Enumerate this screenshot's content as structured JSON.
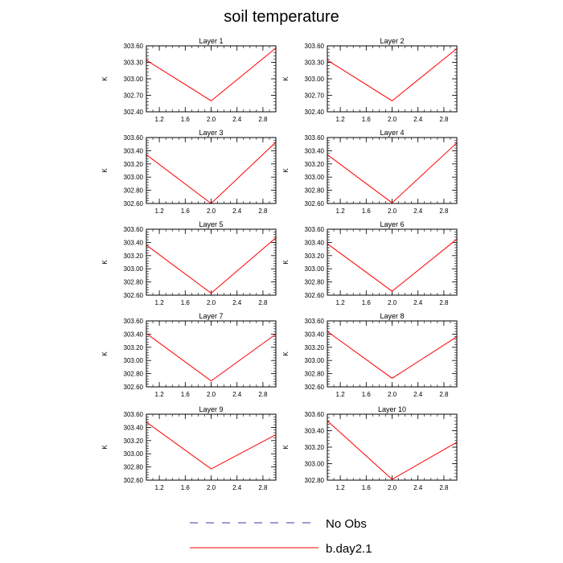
{
  "title": "soil temperature",
  "legend": [
    {
      "label": "No Obs",
      "color": "#3b3b9c",
      "dash": true
    },
    {
      "label": "b.day2.1",
      "color": "#ff0000",
      "dash": false
    }
  ],
  "chart_data": [
    {
      "type": "line",
      "title": "Layer 1",
      "ylabel": "K",
      "xlim": [
        1.0,
        3.0
      ],
      "ylim": [
        302.4,
        303.6
      ],
      "xticks": [
        1.2,
        1.6,
        2.0,
        2.4,
        2.8
      ],
      "xtick_labels": [
        "1.2",
        "1.6",
        "2.0",
        "2.4",
        "2.8"
      ],
      "yticks": [
        302.4,
        302.7,
        303.0,
        303.3,
        303.6
      ],
      "ytick_labels": [
        "302.40",
        "302.70",
        "303.00",
        "303.30",
        "303.60"
      ],
      "series": [
        {
          "name": "b.day2.1",
          "x": [
            1,
            2,
            3
          ],
          "values": [
            303.34,
            302.6,
            303.56
          ]
        }
      ]
    },
    {
      "type": "line",
      "title": "Layer 2",
      "ylabel": "K",
      "xlim": [
        1.0,
        3.0
      ],
      "ylim": [
        302.4,
        303.6
      ],
      "xticks": [
        1.2,
        1.6,
        2.0,
        2.4,
        2.8
      ],
      "xtick_labels": [
        "1.2",
        "1.6",
        "2.0",
        "2.4",
        "2.8"
      ],
      "yticks": [
        302.4,
        302.7,
        303.0,
        303.3,
        303.6
      ],
      "ytick_labels": [
        "302.40",
        "302.70",
        "303.00",
        "303.30",
        "303.60"
      ],
      "series": [
        {
          "name": "b.day2.1",
          "x": [
            1,
            2,
            3
          ],
          "values": [
            303.34,
            302.6,
            303.55
          ]
        }
      ]
    },
    {
      "type": "line",
      "title": "Layer 3",
      "ylabel": "K",
      "xlim": [
        1.0,
        3.0
      ],
      "ylim": [
        302.6,
        303.6
      ],
      "xticks": [
        1.2,
        1.6,
        2.0,
        2.4,
        2.8
      ],
      "xtick_labels": [
        "1.2",
        "1.6",
        "2.0",
        "2.4",
        "2.8"
      ],
      "yticks": [
        302.6,
        302.8,
        303.0,
        303.2,
        303.4,
        303.6
      ],
      "ytick_labels": [
        "302.60",
        "302.80",
        "303.00",
        "303.20",
        "303.40",
        "303.60"
      ],
      "series": [
        {
          "name": "b.day2.1",
          "x": [
            1,
            2,
            3
          ],
          "values": [
            303.34,
            302.6,
            303.53
          ]
        }
      ]
    },
    {
      "type": "line",
      "title": "Layer 4",
      "ylabel": "K",
      "xlim": [
        1.0,
        3.0
      ],
      "ylim": [
        302.6,
        303.6
      ],
      "xticks": [
        1.2,
        1.6,
        2.0,
        2.4,
        2.8
      ],
      "xtick_labels": [
        "1.2",
        "1.6",
        "2.0",
        "2.4",
        "2.8"
      ],
      "yticks": [
        302.6,
        302.8,
        303.0,
        303.2,
        303.4,
        303.6
      ],
      "ytick_labels": [
        "302.60",
        "302.80",
        "303.00",
        "303.20",
        "303.40",
        "303.60"
      ],
      "series": [
        {
          "name": "b.day2.1",
          "x": [
            1,
            2,
            3
          ],
          "values": [
            303.34,
            302.61,
            303.52
          ]
        }
      ]
    },
    {
      "type": "line",
      "title": "Layer 5",
      "ylabel": "K",
      "xlim": [
        1.0,
        3.0
      ],
      "ylim": [
        302.6,
        303.6
      ],
      "xticks": [
        1.2,
        1.6,
        2.0,
        2.4,
        2.8
      ],
      "xtick_labels": [
        "1.2",
        "1.6",
        "2.0",
        "2.4",
        "2.8"
      ],
      "yticks": [
        302.6,
        302.8,
        303.0,
        303.2,
        303.4,
        303.6
      ],
      "ytick_labels": [
        "302.60",
        "302.80",
        "303.00",
        "303.20",
        "303.40",
        "303.60"
      ],
      "series": [
        {
          "name": "b.day2.1",
          "x": [
            1,
            2,
            3
          ],
          "values": [
            303.36,
            302.63,
            303.47
          ]
        }
      ]
    },
    {
      "type": "line",
      "title": "Layer 6",
      "ylabel": "K",
      "xlim": [
        1.0,
        3.0
      ],
      "ylim": [
        302.6,
        303.6
      ],
      "xticks": [
        1.2,
        1.6,
        2.0,
        2.4,
        2.8
      ],
      "xtick_labels": [
        "1.2",
        "1.6",
        "2.0",
        "2.4",
        "2.8"
      ],
      "yticks": [
        302.6,
        302.8,
        303.0,
        303.2,
        303.4,
        303.6
      ],
      "ytick_labels": [
        "302.60",
        "302.80",
        "303.00",
        "303.20",
        "303.40",
        "303.60"
      ],
      "series": [
        {
          "name": "b.day2.1",
          "x": [
            1,
            2,
            3
          ],
          "values": [
            303.38,
            302.66,
            303.45
          ]
        }
      ]
    },
    {
      "type": "line",
      "title": "Layer 7",
      "ylabel": "K",
      "xlim": [
        1.0,
        3.0
      ],
      "ylim": [
        302.6,
        303.6
      ],
      "xticks": [
        1.2,
        1.6,
        2.0,
        2.4,
        2.8
      ],
      "xtick_labels": [
        "1.2",
        "1.6",
        "2.0",
        "2.4",
        "2.8"
      ],
      "yticks": [
        302.6,
        302.8,
        303.0,
        303.2,
        303.4,
        303.6
      ],
      "ytick_labels": [
        "302.60",
        "302.80",
        "303.00",
        "303.20",
        "303.40",
        "303.60"
      ],
      "series": [
        {
          "name": "b.day2.1",
          "x": [
            1,
            2,
            3
          ],
          "values": [
            303.41,
            302.69,
            303.4
          ]
        }
      ]
    },
    {
      "type": "line",
      "title": "Layer 8",
      "ylabel": "K",
      "xlim": [
        1.0,
        3.0
      ],
      "ylim": [
        302.6,
        303.6
      ],
      "xticks": [
        1.2,
        1.6,
        2.0,
        2.4,
        2.8
      ],
      "xtick_labels": [
        "1.2",
        "1.6",
        "2.0",
        "2.4",
        "2.8"
      ],
      "yticks": [
        302.6,
        302.8,
        303.0,
        303.2,
        303.4,
        303.6
      ],
      "ytick_labels": [
        "302.60",
        "302.80",
        "303.00",
        "303.20",
        "303.40",
        "303.60"
      ],
      "series": [
        {
          "name": "b.day2.1",
          "x": [
            1,
            2,
            3
          ],
          "values": [
            303.44,
            302.73,
            303.36
          ]
        }
      ]
    },
    {
      "type": "line",
      "title": "Layer 9",
      "ylabel": "K",
      "xlim": [
        1.0,
        3.0
      ],
      "ylim": [
        302.6,
        303.6
      ],
      "xticks": [
        1.2,
        1.6,
        2.0,
        2.4,
        2.8
      ],
      "xtick_labels": [
        "1.2",
        "1.6",
        "2.0",
        "2.4",
        "2.8"
      ],
      "yticks": [
        302.6,
        302.8,
        303.0,
        303.2,
        303.4,
        303.6
      ],
      "ytick_labels": [
        "302.60",
        "302.80",
        "303.00",
        "303.20",
        "303.40",
        "303.60"
      ],
      "series": [
        {
          "name": "b.day2.1",
          "x": [
            1,
            2,
            3
          ],
          "values": [
            303.48,
            302.77,
            303.29
          ]
        }
      ]
    },
    {
      "type": "line",
      "title": "Layer 10",
      "ylabel": "K",
      "xlim": [
        1.0,
        3.0
      ],
      "ylim": [
        302.8,
        303.6
      ],
      "xticks": [
        1.2,
        1.6,
        2.0,
        2.4,
        2.8
      ],
      "xtick_labels": [
        "1.2",
        "1.6",
        "2.0",
        "2.4",
        "2.8"
      ],
      "yticks": [
        302.8,
        303.0,
        303.2,
        303.4,
        303.6
      ],
      "ytick_labels": [
        "302.80",
        "303.00",
        "303.20",
        "303.40",
        "303.60"
      ],
      "series": [
        {
          "name": "b.day2.1",
          "x": [
            1,
            2,
            3
          ],
          "values": [
            303.52,
            302.81,
            303.26
          ]
        }
      ]
    }
  ]
}
